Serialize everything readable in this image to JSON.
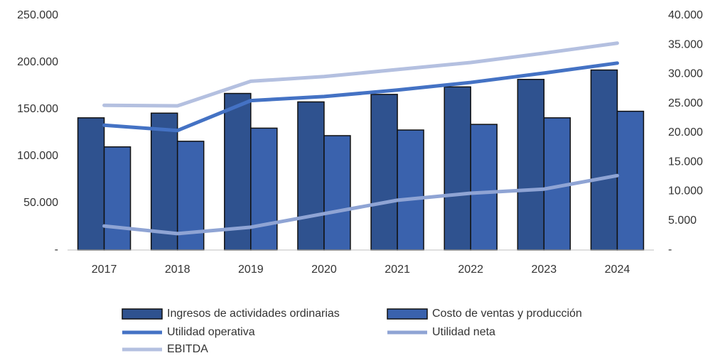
{
  "chart_data": {
    "type": "bar",
    "categories": [
      "2017",
      "2018",
      "2019",
      "2020",
      "2021",
      "2022",
      "2023",
      "2024"
    ],
    "series": [
      {
        "name": "Ingresos de actividades ordinarias",
        "type": "bar",
        "color": "#2f528f",
        "values": [
          141000,
          146000,
          167000,
          158000,
          166000,
          174000,
          182000,
          192000
        ]
      },
      {
        "name": "Costo de ventas y producción",
        "type": "bar",
        "color": "#3a62ad",
        "values": [
          110000,
          116000,
          130000,
          122000,
          128000,
          134000,
          141000,
          148000
        ]
      },
      {
        "name": "Utilidad operativa",
        "type": "line",
        "axis": "y2",
        "color": "#4472c4",
        "values": [
          21300,
          20400,
          25500,
          26200,
          27300,
          28600,
          30200,
          31900
        ]
      },
      {
        "name": "Utilidad neta",
        "type": "line",
        "axis": "y2",
        "color": "#8fa4d4",
        "values": [
          4100,
          2800,
          3900,
          6200,
          8500,
          9700,
          10400,
          12700
        ]
      },
      {
        "name": "EBITDA",
        "type": "line",
        "axis": "y2",
        "color": "#b4c0e0",
        "values": [
          24700,
          24600,
          28800,
          29600,
          30800,
          32000,
          33600,
          35300
        ]
      }
    ],
    "ylim": [
      0,
      250000
    ],
    "yticks": [
      {
        "value": 0,
        "label": "-"
      },
      {
        "value": 50000,
        "label": "50.000"
      },
      {
        "value": 100000,
        "label": "100.000"
      },
      {
        "value": 150000,
        "label": "150.000"
      },
      {
        "value": 200000,
        "label": "200.000"
      },
      {
        "value": 250000,
        "label": "250.000"
      }
    ],
    "y2lim": [
      0,
      40000
    ],
    "y2ticks": [
      {
        "value": 0,
        "label": "-"
      },
      {
        "value": 5000,
        "label": "5.000"
      },
      {
        "value": 10000,
        "label": "10.000"
      },
      {
        "value": 15000,
        "label": "15.000"
      },
      {
        "value": 20000,
        "label": "20.000"
      },
      {
        "value": 25000,
        "label": "25.000"
      },
      {
        "value": 30000,
        "label": "30.000"
      },
      {
        "value": 35000,
        "label": "35.000"
      },
      {
        "value": 40000,
        "label": "40.000"
      }
    ],
    "legend": "bottom"
  }
}
